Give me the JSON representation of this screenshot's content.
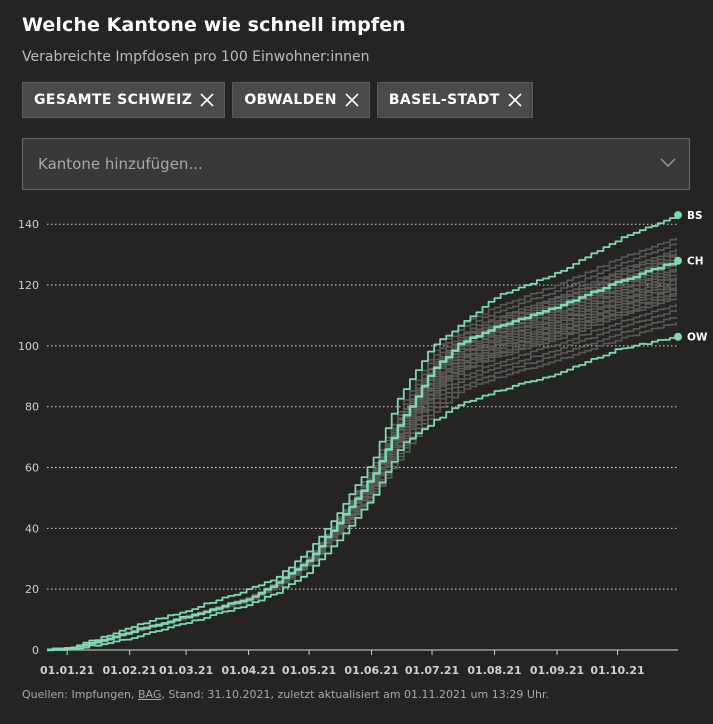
{
  "header": {
    "title": "Welche Kantone wie schnell impfen",
    "subtitle": "Verabreichte Impfdosen pro 100 Einwohner:innen"
  },
  "chips": [
    {
      "label": "GESAMTE SCHWEIZ"
    },
    {
      "label": "OBWALDEN"
    },
    {
      "label": "BASEL-STADT"
    }
  ],
  "dropdown": {
    "placeholder": "Kantone hinzufügen...",
    "icon": "chevron-down-icon"
  },
  "footer": {
    "prefix": "Quellen: Impfungen, ",
    "link": "BAG",
    "suffix": ", Stand: 31.10.2021, zuletzt aktualisiert am 01.11.2021 um 13:29 Uhr."
  },
  "colors": {
    "background": "#252423",
    "highlight": "#7fd8b4",
    "other_cantons": "#5c5a57",
    "grid": "#d8d8d8"
  },
  "chart_data": {
    "type": "line",
    "xlabel": "",
    "ylabel": "",
    "ylim": [
      0,
      145
    ],
    "xlim": [
      "2020-12-22",
      "2021-10-31"
    ],
    "y_ticks": [
      0,
      20,
      40,
      60,
      80,
      100,
      120,
      140
    ],
    "x_ticks": [
      "01.01.21",
      "01.02.21",
      "01.03.21",
      "01.04.21",
      "01.05.21",
      "01.06.21",
      "01.07.21",
      "01.08.21",
      "01.09.21",
      "01.10.21"
    ],
    "x_tick_dates": [
      "2021-01-01",
      "2021-02-01",
      "2021-03-01",
      "2021-04-01",
      "2021-05-01",
      "2021-06-01",
      "2021-07-01",
      "2021-08-01",
      "2021-09-01",
      "2021-10-01"
    ],
    "grid": "horizontal dotted",
    "highlighted_series": [
      {
        "name": "BS",
        "points": [
          [
            "2020-12-22",
            0
          ],
          [
            "2021-01-01",
            0.5
          ],
          [
            "2021-01-15",
            3.5
          ],
          [
            "2021-02-01",
            7.5
          ],
          [
            "2021-03-01",
            13
          ],
          [
            "2021-04-01",
            20
          ],
          [
            "2021-04-15",
            24
          ],
          [
            "2021-05-01",
            33
          ],
          [
            "2021-05-15",
            45
          ],
          [
            "2021-06-01",
            62
          ],
          [
            "2021-06-15",
            84
          ],
          [
            "2021-07-01",
            100
          ],
          [
            "2021-07-15",
            107
          ],
          [
            "2021-08-01",
            116
          ],
          [
            "2021-09-01",
            124
          ],
          [
            "2021-10-01",
            135
          ],
          [
            "2021-10-31",
            143
          ]
        ]
      },
      {
        "name": "CH",
        "points": [
          [
            "2020-12-22",
            0
          ],
          [
            "2021-01-01",
            0.3
          ],
          [
            "2021-01-15",
            2.5
          ],
          [
            "2021-02-01",
            6
          ],
          [
            "2021-03-01",
            11
          ],
          [
            "2021-04-01",
            17
          ],
          [
            "2021-04-15",
            22
          ],
          [
            "2021-05-01",
            30
          ],
          [
            "2021-05-15",
            42
          ],
          [
            "2021-06-01",
            57
          ],
          [
            "2021-06-15",
            75
          ],
          [
            "2021-07-01",
            92
          ],
          [
            "2021-07-15",
            101
          ],
          [
            "2021-08-01",
            106
          ],
          [
            "2021-09-01",
            113
          ],
          [
            "2021-10-01",
            121
          ],
          [
            "2021-10-31",
            128
          ]
        ]
      },
      {
        "name": "OW",
        "points": [
          [
            "2020-12-22",
            0
          ],
          [
            "2021-01-01",
            0.2
          ],
          [
            "2021-01-15",
            1.5
          ],
          [
            "2021-02-01",
            4
          ],
          [
            "2021-03-01",
            9
          ],
          [
            "2021-04-01",
            15
          ],
          [
            "2021-04-15",
            19
          ],
          [
            "2021-05-01",
            26
          ],
          [
            "2021-05-15",
            36
          ],
          [
            "2021-06-01",
            50
          ],
          [
            "2021-06-15",
            67
          ],
          [
            "2021-07-01",
            75
          ],
          [
            "2021-07-15",
            81
          ],
          [
            "2021-08-01",
            85
          ],
          [
            "2021-09-01",
            91
          ],
          [
            "2021-10-01",
            99
          ],
          [
            "2021-10-31",
            103
          ]
        ]
      }
    ],
    "other_cantons_final": [
      136,
      134,
      132,
      131,
      130,
      129,
      128,
      127,
      126,
      125,
      124,
      123,
      122,
      121,
      120,
      119,
      118,
      117,
      116,
      114,
      112,
      110,
      108
    ]
  }
}
